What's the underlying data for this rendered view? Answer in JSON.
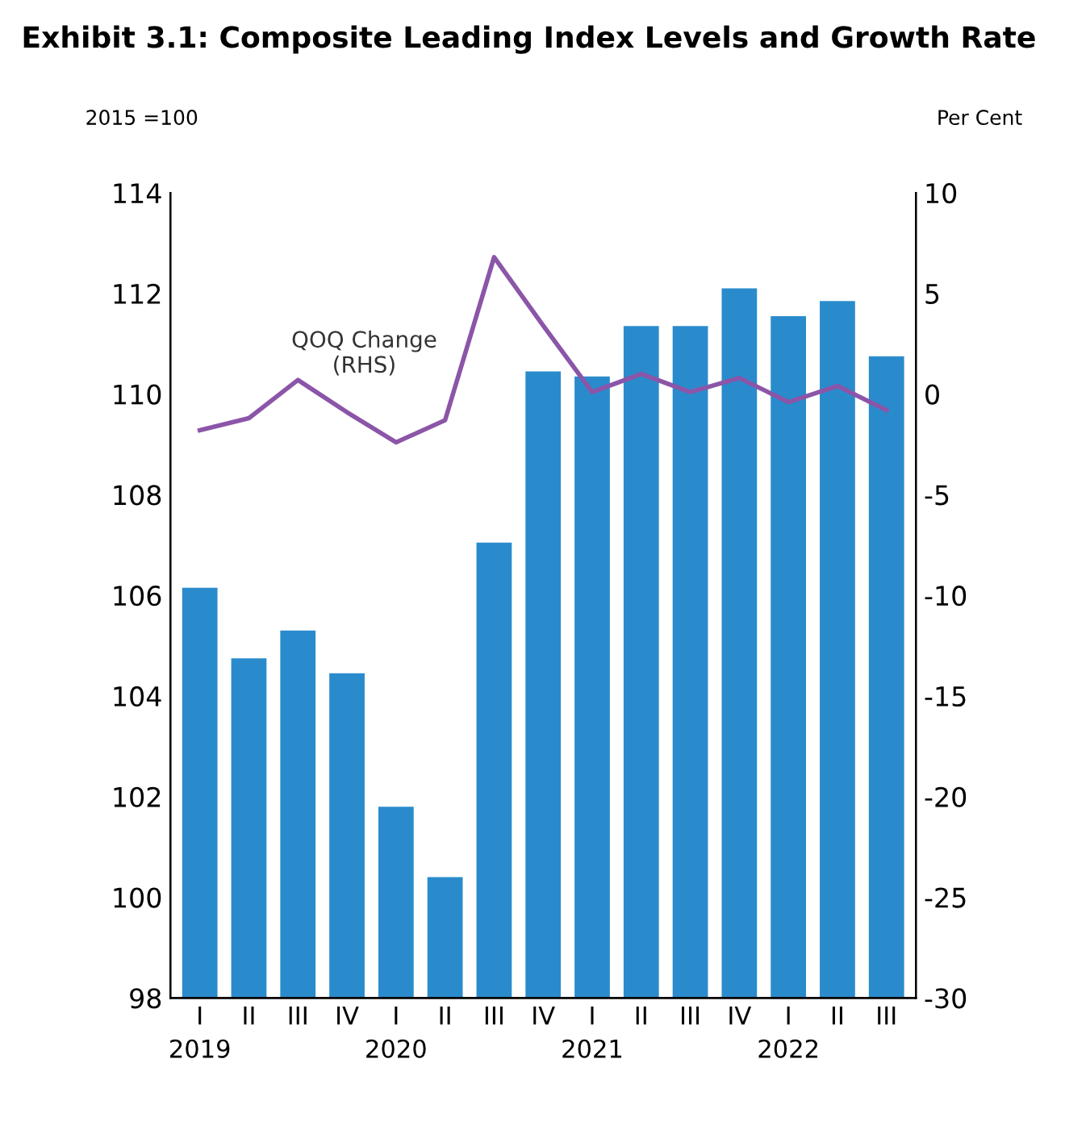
{
  "chart_data": {
    "type": "bar",
    "title": "Exhibit 3.1: Composite Leading Index Levels and Growth Rate",
    "ylabel": "2015 =100",
    "y2label": "Per Cent",
    "categories": [
      "I\n2019",
      "II",
      "III",
      "IV",
      "I\n2020",
      "II",
      "III",
      "IV",
      "I\n2021",
      "II",
      "III",
      "IV",
      "I\n2022",
      "II",
      "III"
    ],
    "series": [
      {
        "color": "#2a8bcc",
        "values": [
          106.15,
          104.75,
          105.3,
          104.45,
          101.8,
          100.4,
          107.05,
          110.45,
          110.35,
          111.35,
          111.35,
          112.1,
          111.55,
          111.85,
          110.75
        ]
      },
      {
        "type": "line",
        "axis": "y2",
        "color": "#8b55a8",
        "values": [
          -1.8,
          -1.2,
          0.7,
          -0.9,
          -2.4,
          -1.3,
          6.8,
          3.4,
          0.1,
          1.0,
          0.1,
          0.8,
          -0.4,
          0.4,
          -0.8
        ]
      }
    ],
    "annotations": [
      "QOQ Change\n(RHS)"
    ],
    "ylim": [
      98,
      114
    ],
    "yticks": [
      98,
      100,
      102,
      104,
      106,
      108,
      110,
      112,
      114
    ],
    "y2lim": [
      -30,
      10
    ],
    "y2ticks": [
      -30,
      -25,
      -20,
      -15,
      -10,
      -5,
      0,
      5,
      10
    ],
    "grid": false,
    "legend": false
  }
}
